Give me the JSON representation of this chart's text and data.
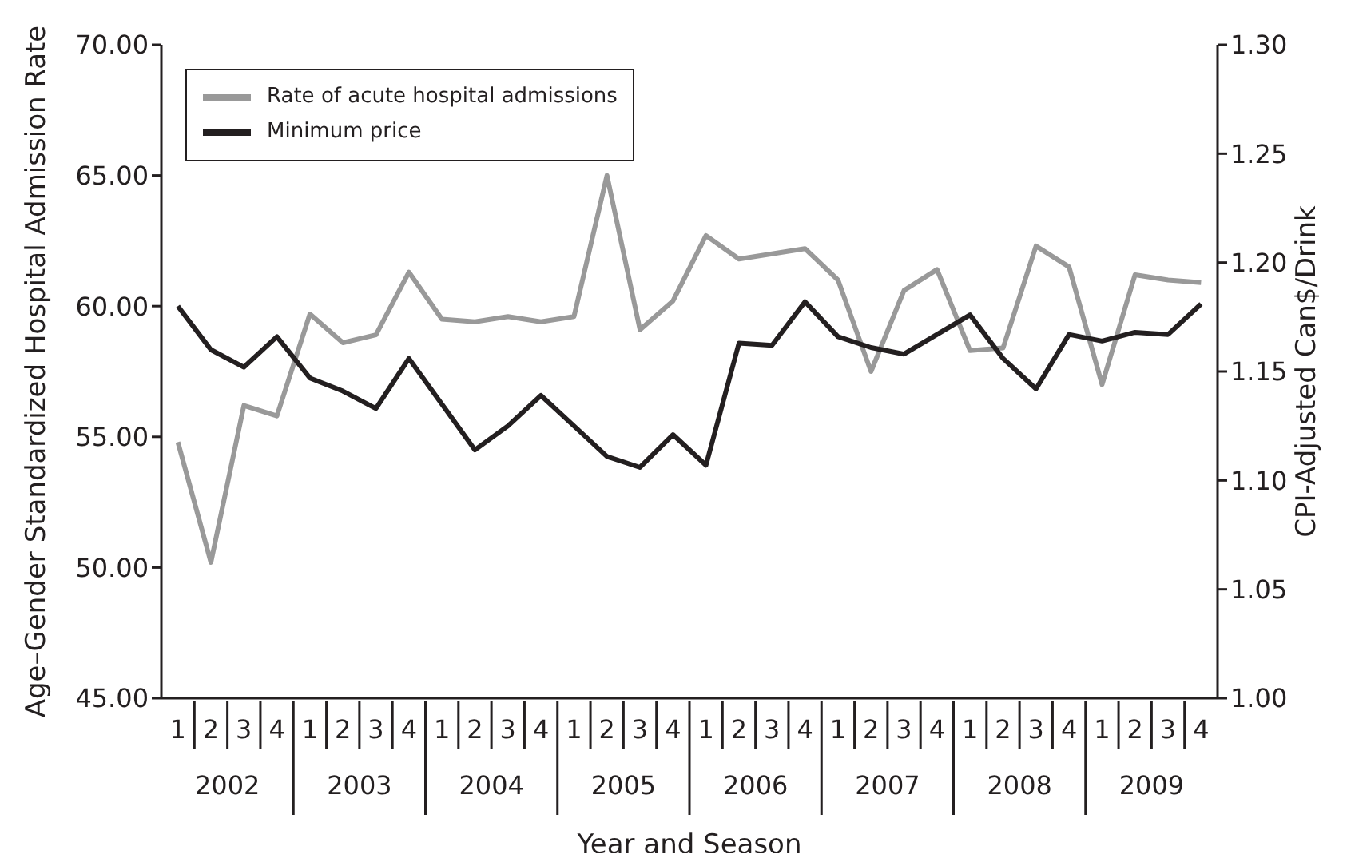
{
  "chart_data": {
    "type": "line",
    "xlabel": "Year and Season",
    "ylabel": "Age–Gender Standardized  Hospital Admission Rate",
    "y2label": "CPI-Adjusted Can$/Drink",
    "categories": [
      "1",
      "2",
      "3",
      "4",
      "1",
      "2",
      "3",
      "4",
      "1",
      "2",
      "3",
      "4",
      "1",
      "2",
      "3",
      "4",
      "1",
      "2",
      "3",
      "4",
      "1",
      "2",
      "3",
      "4",
      "1",
      "2",
      "3",
      "4",
      "1",
      "2",
      "3",
      "4"
    ],
    "annotations": [
      "2002",
      "2003",
      "2004",
      "2005",
      "2006",
      "2007",
      "2008",
      "2009"
    ],
    "series": [
      {
        "name": "Rate of acute hospital admissions",
        "color": "#999999",
        "values": [
          54.8,
          50.2,
          56.2,
          55.8,
          59.7,
          58.6,
          58.9,
          61.3,
          59.5,
          59.4,
          59.6,
          59.4,
          59.6,
          65.0,
          59.1,
          60.2,
          62.7,
          61.8,
          62.0,
          62.2,
          61.0,
          57.5,
          60.6,
          61.4,
          58.3,
          58.4,
          62.3,
          61.5,
          57.0,
          61.2,
          61.0,
          60.9
        ]
      },
      {
        "name": "Minimum price",
        "color": "#231f20",
        "axis": "y2",
        "values": [
          1.18,
          1.16,
          1.152,
          1.166,
          1.147,
          1.141,
          1.133,
          1.156,
          1.135,
          1.114,
          1.125,
          1.139,
          1.125,
          1.111,
          1.106,
          1.121,
          1.107,
          1.163,
          1.162,
          1.182,
          1.166,
          1.161,
          1.158,
          1.167,
          1.176,
          1.156,
          1.142,
          1.167,
          1.164,
          1.168,
          1.167,
          1.181
        ]
      }
    ],
    "ylim": [
      45,
      70
    ],
    "yticks": [
      {
        "value": 45,
        "label": "45.00"
      },
      {
        "value": 50,
        "label": "50.00"
      },
      {
        "value": 55,
        "label": "55.00"
      },
      {
        "value": 60,
        "label": "60.00"
      },
      {
        "value": 65,
        "label": "65.00"
      },
      {
        "value": 70,
        "label": "70.00"
      }
    ],
    "y2lim": [
      1.0,
      1.3
    ],
    "y2ticks": [
      {
        "value": 1.0,
        "label": "1.00"
      },
      {
        "value": 1.05,
        "label": "1.05"
      },
      {
        "value": 1.1,
        "label": "1.10"
      },
      {
        "value": 1.15,
        "label": "1.15"
      },
      {
        "value": 1.2,
        "label": "1.20"
      },
      {
        "value": 1.25,
        "label": "1.25"
      },
      {
        "value": 1.3,
        "label": "1.30"
      }
    ],
    "grid": false,
    "legend": "top left",
    "marker": "none",
    "line_style": "solid"
  }
}
